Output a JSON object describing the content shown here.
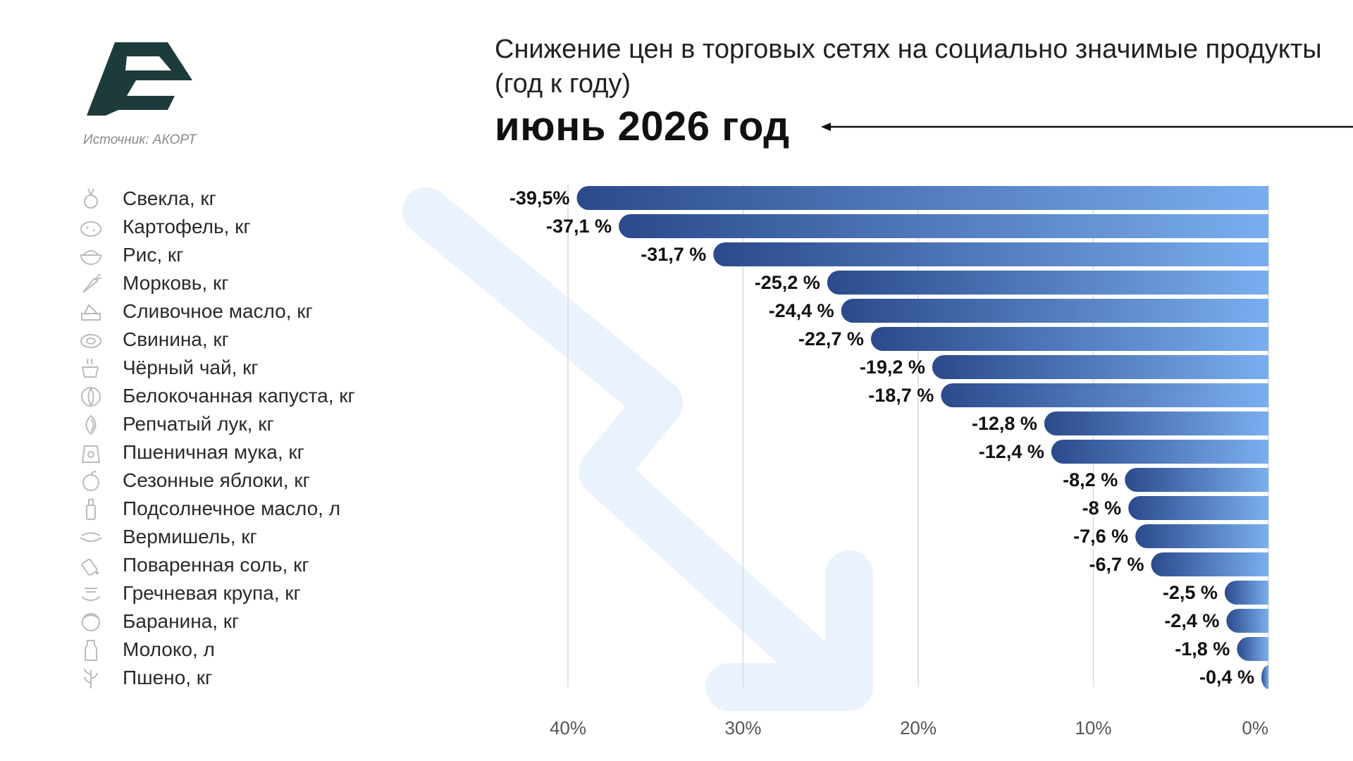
{
  "header": {
    "title": "Снижение цен в торговых сетях на социально значимые продукты (год к году)",
    "subtitle": "июнь 2026 год",
    "source": "Источник: АКОРТ"
  },
  "colors": {
    "bar_dark": "#2b4a8c",
    "bar_light": "#7aaef0",
    "logo": "#1e3b3b",
    "deco_arrow": "#eaf2fd",
    "grid": "#d9d9d9"
  },
  "icons": [
    "beet-icon",
    "potato-icon",
    "rice-bowl-icon",
    "carrot-icon",
    "butter-icon",
    "pork-icon",
    "tea-cup-icon",
    "cabbage-icon",
    "onion-icon",
    "flour-bag-icon",
    "apple-icon",
    "oil-bottle-icon",
    "noodles-icon",
    "salt-icon",
    "buckwheat-icon",
    "lamb-icon",
    "milk-bottle-icon",
    "millet-icon"
  ],
  "chart_data": {
    "type": "bar",
    "orientation": "horizontal",
    "categories": [
      "Свекла, кг",
      "Картофель, кг",
      "Рис, кг",
      "Морковь, кг",
      "Сливочное масло, кг",
      "Свинина, кг",
      "Чёрный чай, кг",
      "Белокочанная капуста, кг",
      "Репчатый лук, кг",
      "Пшеничная мука, кг",
      "Сезонные яблоки, кг",
      "Подсолнечное масло, л",
      "Вермишель, кг",
      "Поваренная соль, кг",
      "Гречневая крупа, кг",
      "Баранина, кг",
      "Молоко, л",
      "Пшено, кг"
    ],
    "values": [
      -39.5,
      -37.1,
      -31.7,
      -25.2,
      -24.4,
      -22.7,
      -19.2,
      -18.7,
      -12.8,
      -12.4,
      -8.2,
      -8,
      -7.6,
      -6.7,
      -2.5,
      -2.4,
      -1.8,
      -0.4
    ],
    "data_labels": [
      "-39,5%",
      "-37,1 %",
      "-31,7 %",
      "-25,2 %",
      "-24,4 %",
      "-22,7 %",
      "-19,2 %",
      "-18,7 %",
      "-12,8 %",
      "-12,4 %",
      "-8,2 %",
      "-8 %",
      "-7,6 %",
      "-6,7 %",
      "-2,5 %",
      "-2,4 %",
      "-1,8 %",
      "-0,4 %"
    ],
    "xlim": [
      40,
      0
    ],
    "xticks": [
      "40%",
      "30%",
      "20%",
      "10%",
      "0%"
    ],
    "grid": true,
    "legend": "none"
  }
}
